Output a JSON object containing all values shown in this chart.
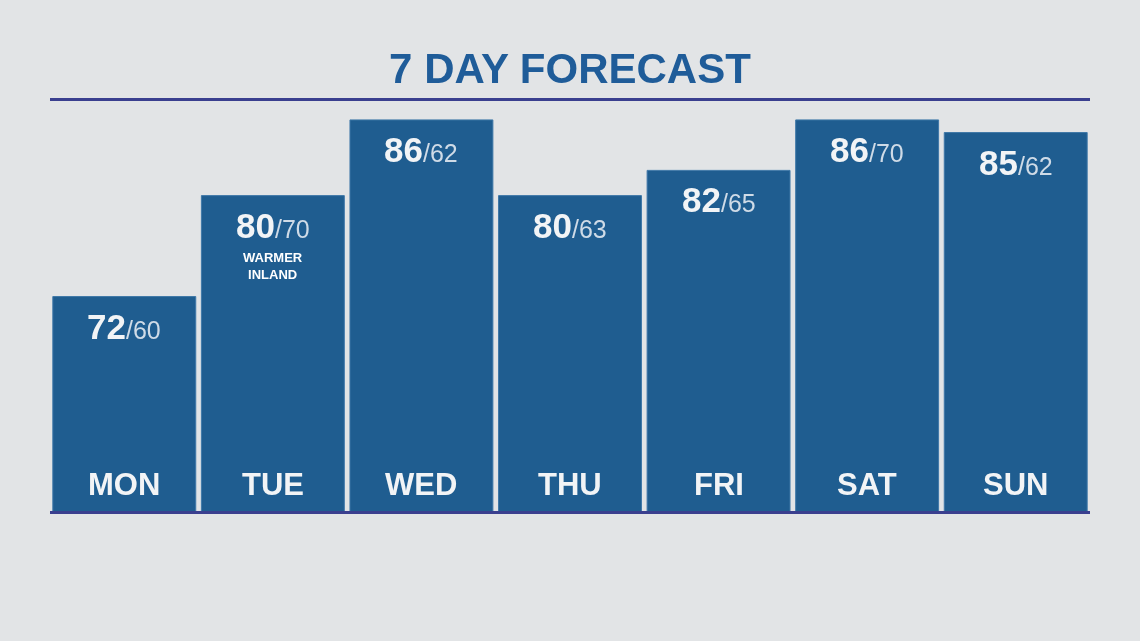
{
  "chart_data": {
    "type": "bar",
    "title": "7 DAY FORECAST",
    "categories": [
      "MON",
      "TUE",
      "WED",
      "THU",
      "FRI",
      "SAT",
      "SUN"
    ],
    "values": [
      72,
      80,
      86,
      80,
      82,
      86,
      85
    ],
    "value_labels": [
      "72/60",
      "80/70",
      "86/62",
      "80/63",
      "82/65",
      "86/70",
      "85/62"
    ],
    "color": "#1f5d90",
    "ylim": [
      55,
      87.5
    ],
    "tick_labels": "x",
    "annotations": [
      "WARMER\nINLAND"
    ]
  }
}
